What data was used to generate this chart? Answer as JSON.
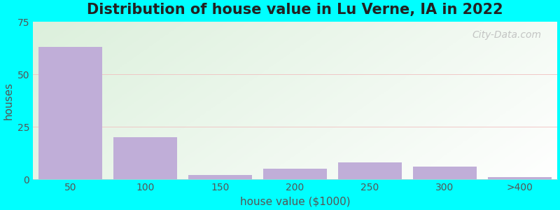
{
  "title": "Distribution of house value in Lu Verne, IA in 2022",
  "xlabel": "house value ($1000)",
  "ylabel": "houses",
  "bar_categories": [
    "50",
    "100",
    "150",
    "200",
    "250",
    "300",
    ">400"
  ],
  "bar_values": [
    63,
    20,
    2,
    5,
    8,
    6,
    1
  ],
  "bar_color": "#c0aed8",
  "bar_edge_color": "#b09ec8",
  "ylim": [
    0,
    75
  ],
  "yticks": [
    0,
    25,
    50,
    75
  ],
  "outer_bg": "#00ffff",
  "title_fontsize": 15,
  "axis_label_fontsize": 11,
  "tick_fontsize": 10,
  "watermark_text": "City-Data.com",
  "grid_color": "#e8c8c8",
  "bg_left": "#d0ead0",
  "bg_right": "#edfaed"
}
